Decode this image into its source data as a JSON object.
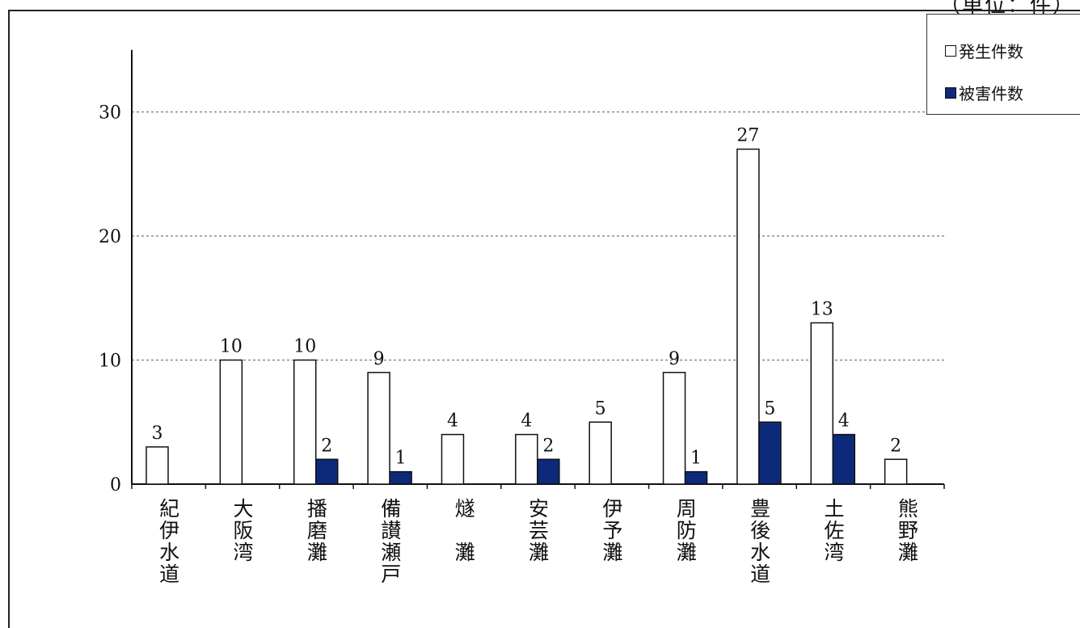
{
  "unit_label": "（単位：件）",
  "chart_data": {
    "type": "bar",
    "categories": [
      "紀伊水道",
      "大阪湾",
      "播磨灘",
      "備讃瀬戸",
      "燧　灘",
      "安芸灘",
      "伊予灘",
      "周防灘",
      "豊後水道",
      "土佐湾",
      "熊野灘"
    ],
    "series": [
      {
        "name": "発生件数",
        "values": [
          3,
          10,
          10,
          9,
          4,
          4,
          5,
          9,
          27,
          13,
          2
        ],
        "color": "#ffffff"
      },
      {
        "name": "被害件数",
        "values": [
          0,
          0,
          2,
          1,
          0,
          2,
          0,
          1,
          5,
          4,
          0
        ],
        "color": "#0d2a7a"
      }
    ],
    "yticks": [
      "0",
      "10",
      "20",
      "30"
    ],
    "ylim": [
      0,
      35
    ],
    "grid": true,
    "legend_position": "top-right"
  }
}
